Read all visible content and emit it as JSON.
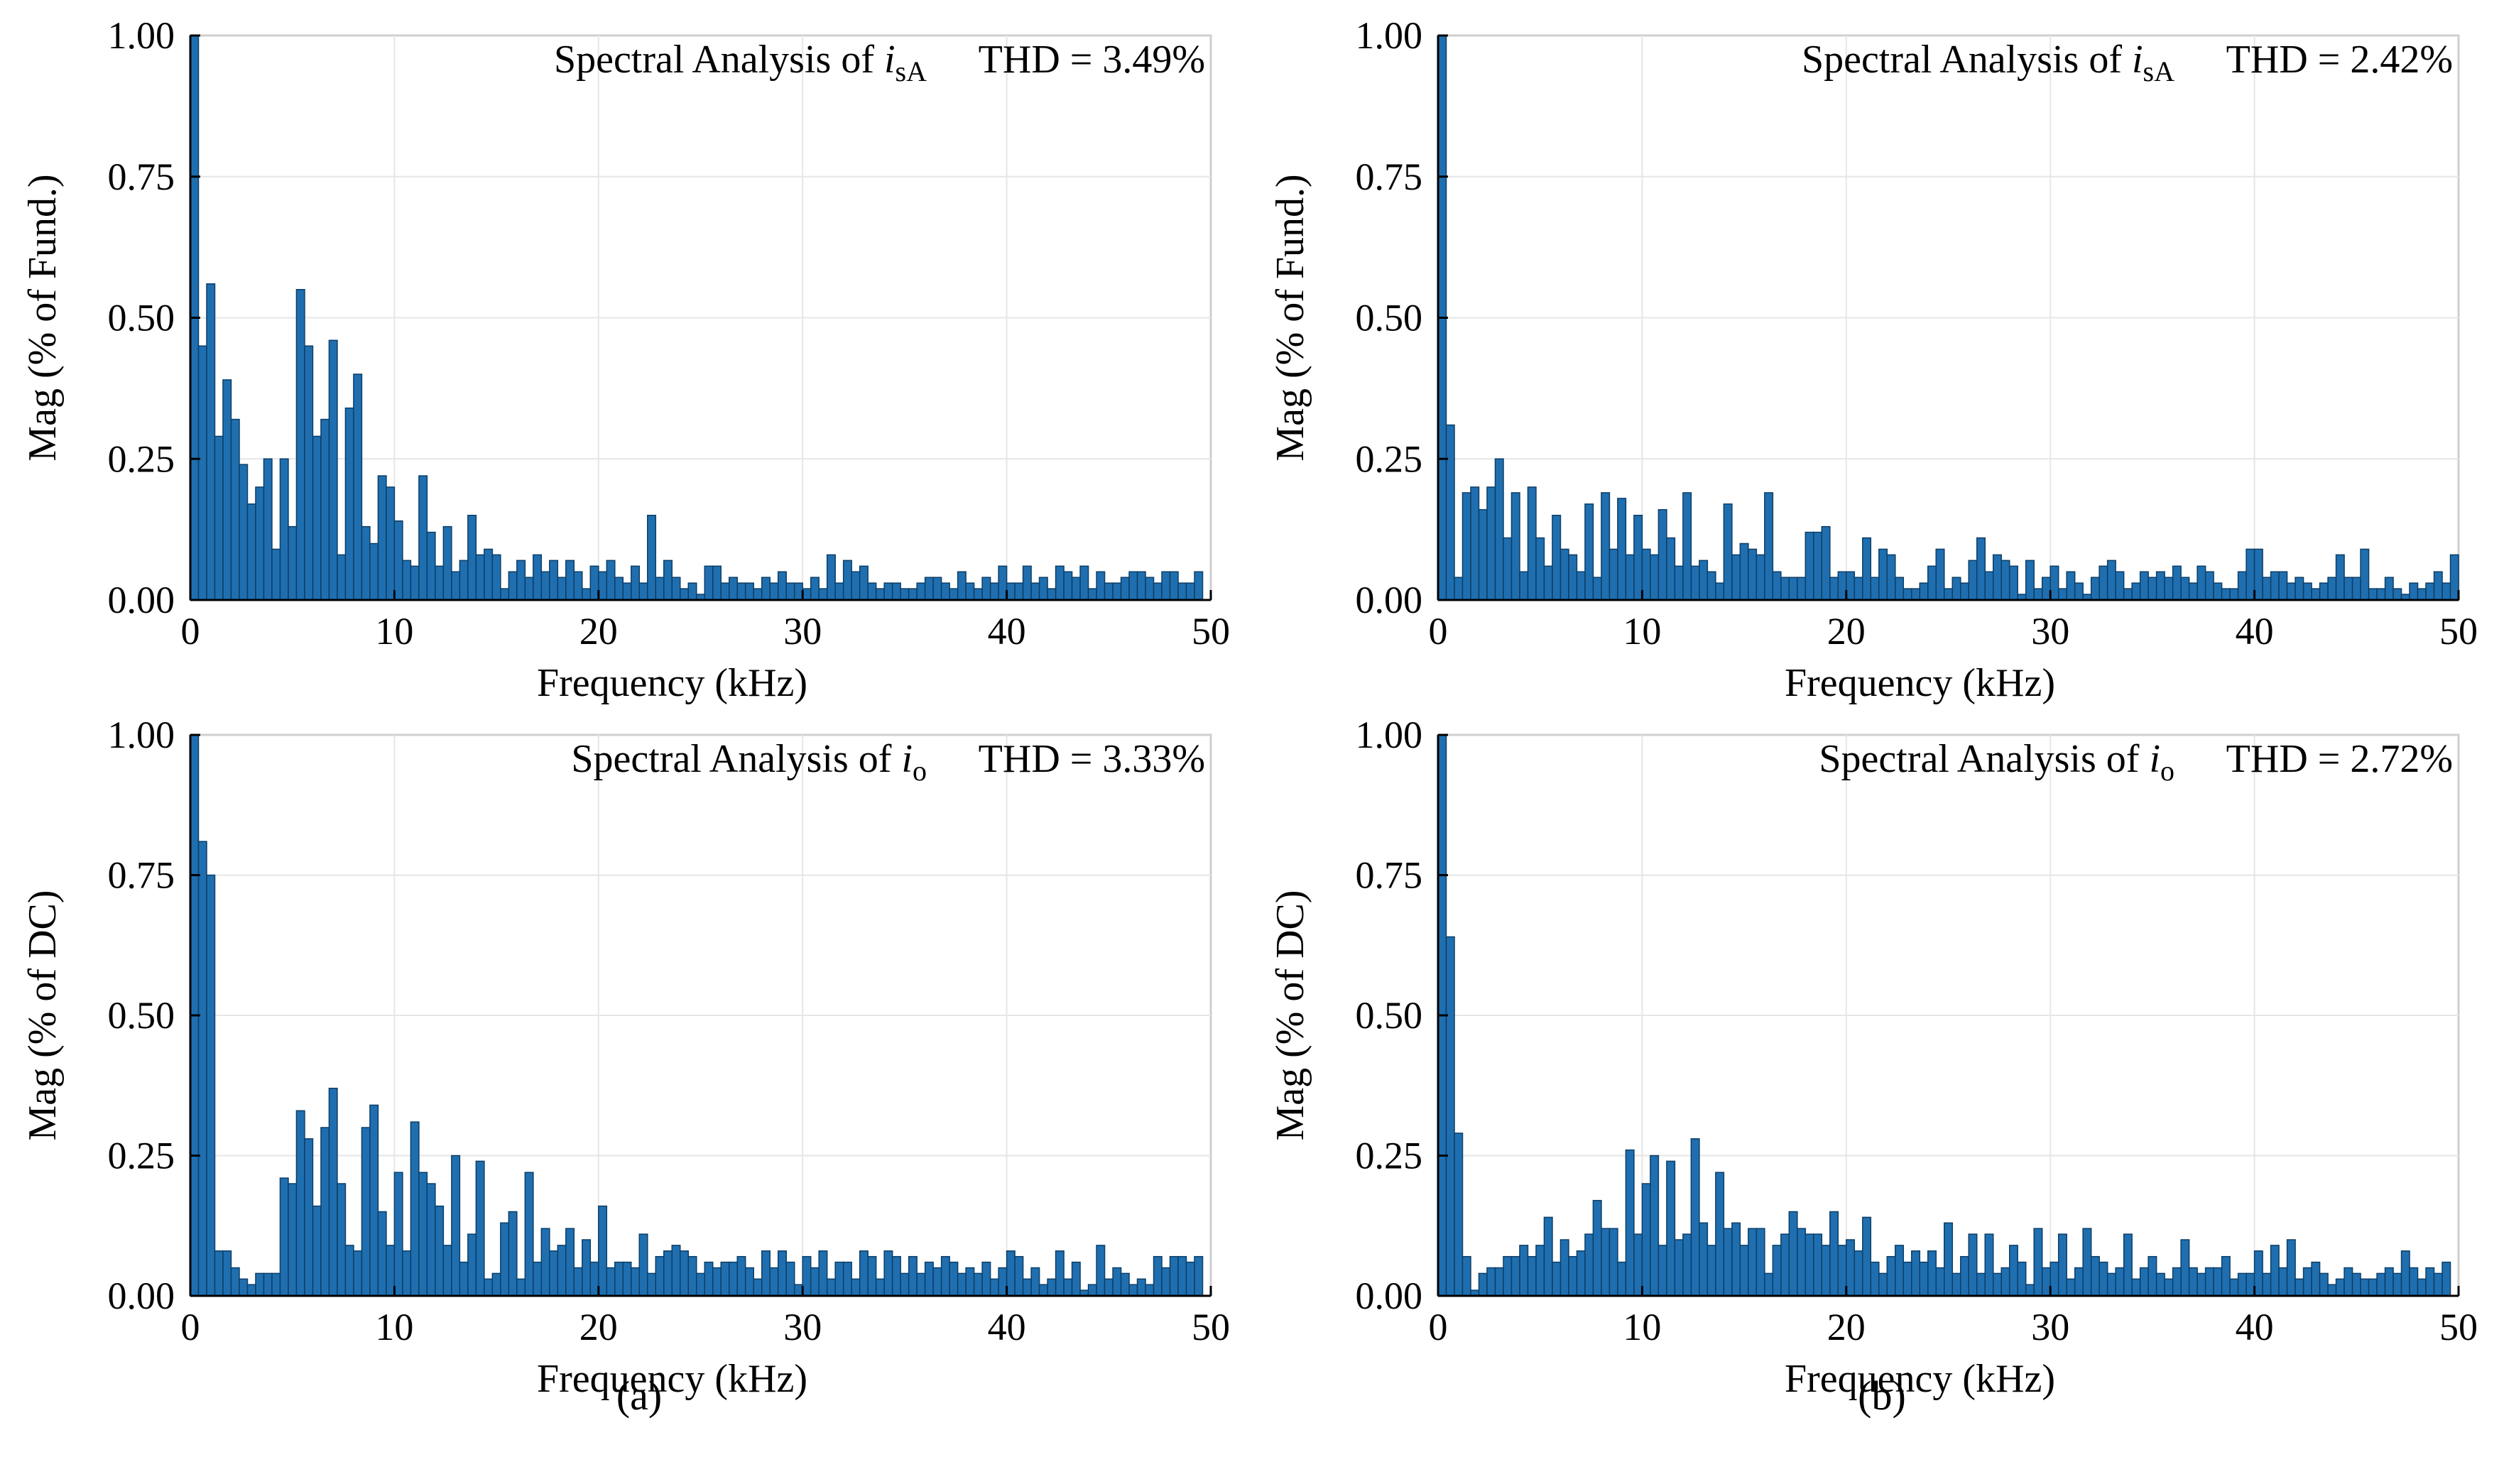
{
  "colors": {
    "bar": "#1f6fb0",
    "bar_edge": "#0d3e66",
    "grid": "#e6e6e6",
    "frame": "#cfcfcf",
    "axis": "#000000"
  },
  "captions": [
    "(a)",
    "(b)"
  ],
  "chart_data": [
    {
      "type": "bar",
      "title_prefix": "Spectral Analysis of ",
      "title_var": "i",
      "title_sub": "sA",
      "thd": "THD = 3.49%",
      "xlabel": "Frequency (kHz)",
      "ylabel": "Mag (% of Fund.)",
      "xlim": [
        0,
        50
      ],
      "ylim": [
        0,
        1
      ],
      "xticks": [
        "0",
        "10",
        "20",
        "30",
        "40",
        "50"
      ],
      "yticks": [
        "0.00",
        "0.25",
        "0.50",
        "0.75",
        "1.00"
      ],
      "bin_width_khz": 0.4,
      "values": [
        1.0,
        0.45,
        0.56,
        0.29,
        0.39,
        0.32,
        0.24,
        0.17,
        0.2,
        0.25,
        0.09,
        0.25,
        0.13,
        0.55,
        0.45,
        0.29,
        0.32,
        0.46,
        0.08,
        0.34,
        0.4,
        0.13,
        0.1,
        0.22,
        0.2,
        0.14,
        0.07,
        0.06,
        0.22,
        0.12,
        0.06,
        0.13,
        0.05,
        0.07,
        0.15,
        0.08,
        0.09,
        0.08,
        0.02,
        0.05,
        0.07,
        0.04,
        0.08,
        0.05,
        0.07,
        0.04,
        0.07,
        0.05,
        0.02,
        0.06,
        0.05,
        0.07,
        0.04,
        0.03,
        0.06,
        0.03,
        0.15,
        0.04,
        0.07,
        0.04,
        0.02,
        0.03,
        0.01,
        0.06,
        0.06,
        0.03,
        0.04,
        0.03,
        0.03,
        0.02,
        0.04,
        0.03,
        0.05,
        0.03,
        0.03,
        0.02,
        0.04,
        0.02,
        0.08,
        0.03,
        0.07,
        0.05,
        0.06,
        0.03,
        0.02,
        0.03,
        0.03,
        0.02,
        0.02,
        0.03,
        0.04,
        0.04,
        0.03,
        0.02,
        0.05,
        0.03,
        0.02,
        0.04,
        0.03,
        0.06,
        0.03,
        0.03,
        0.06,
        0.03,
        0.04,
        0.02,
        0.06,
        0.05,
        0.04,
        0.06,
        0.02,
        0.05,
        0.03,
        0.03,
        0.04,
        0.05,
        0.05,
        0.04,
        0.03,
        0.05,
        0.05,
        0.03,
        0.03,
        0.05
      ]
    },
    {
      "type": "bar",
      "title_prefix": "Spectral Analysis of ",
      "title_var": "i",
      "title_sub": "sA",
      "thd": "THD = 2.42%",
      "xlabel": "Frequency (kHz)",
      "ylabel": "Mag (% of Fund.)",
      "xlim": [
        0,
        50
      ],
      "ylim": [
        0,
        1
      ],
      "xticks": [
        "0",
        "10",
        "20",
        "30",
        "40",
        "50"
      ],
      "yticks": [
        "0.00",
        "0.25",
        "0.50",
        "0.75",
        "1.00"
      ],
      "bin_width_khz": 0.4,
      "values": [
        1.0,
        0.31,
        0.04,
        0.19,
        0.2,
        0.16,
        0.2,
        0.25,
        0.11,
        0.19,
        0.05,
        0.2,
        0.11,
        0.06,
        0.15,
        0.09,
        0.08,
        0.05,
        0.17,
        0.04,
        0.19,
        0.09,
        0.18,
        0.08,
        0.15,
        0.09,
        0.08,
        0.16,
        0.11,
        0.06,
        0.19,
        0.06,
        0.07,
        0.05,
        0.03,
        0.17,
        0.08,
        0.1,
        0.09,
        0.08,
        0.19,
        0.05,
        0.04,
        0.04,
        0.04,
        0.12,
        0.12,
        0.13,
        0.04,
        0.05,
        0.05,
        0.04,
        0.11,
        0.04,
        0.09,
        0.08,
        0.04,
        0.02,
        0.02,
        0.03,
        0.06,
        0.09,
        0.02,
        0.04,
        0.03,
        0.07,
        0.11,
        0.05,
        0.08,
        0.07,
        0.06,
        0.01,
        0.07,
        0.02,
        0.04,
        0.06,
        0.02,
        0.05,
        0.03,
        0.01,
        0.04,
        0.06,
        0.07,
        0.05,
        0.02,
        0.03,
        0.05,
        0.04,
        0.05,
        0.04,
        0.06,
        0.04,
        0.03,
        0.06,
        0.05,
        0.03,
        0.02,
        0.02,
        0.05,
        0.09,
        0.09,
        0.04,
        0.05,
        0.05,
        0.03,
        0.04,
        0.03,
        0.02,
        0.03,
        0.04,
        0.08,
        0.04,
        0.04,
        0.09,
        0.02,
        0.02,
        0.04,
        0.02,
        0.01,
        0.03,
        0.02,
        0.03,
        0.05,
        0.03,
        0.08
      ]
    },
    {
      "type": "bar",
      "title_prefix": "Spectral Analysis of ",
      "title_var": "i",
      "title_sub": "o",
      "thd": "THD = 3.33%",
      "xlabel": "Frequency (kHz)",
      "ylabel": "Mag (% of DC)",
      "xlim": [
        0,
        50
      ],
      "ylim": [
        0,
        1
      ],
      "xticks": [
        "0",
        "10",
        "20",
        "30",
        "40",
        "50"
      ],
      "yticks": [
        "0.00",
        "0.25",
        "0.50",
        "0.75",
        "1.00"
      ],
      "bin_width_khz": 0.4,
      "values": [
        1.0,
        0.81,
        0.75,
        0.08,
        0.08,
        0.05,
        0.03,
        0.02,
        0.04,
        0.04,
        0.04,
        0.21,
        0.2,
        0.33,
        0.28,
        0.16,
        0.3,
        0.37,
        0.2,
        0.09,
        0.08,
        0.3,
        0.34,
        0.15,
        0.09,
        0.22,
        0.08,
        0.31,
        0.22,
        0.2,
        0.16,
        0.09,
        0.25,
        0.06,
        0.11,
        0.24,
        0.03,
        0.04,
        0.13,
        0.15,
        0.03,
        0.22,
        0.06,
        0.12,
        0.08,
        0.09,
        0.12,
        0.05,
        0.1,
        0.06,
        0.16,
        0.05,
        0.06,
        0.06,
        0.05,
        0.11,
        0.04,
        0.07,
        0.08,
        0.09,
        0.08,
        0.07,
        0.04,
        0.06,
        0.05,
        0.06,
        0.06,
        0.07,
        0.05,
        0.03,
        0.08,
        0.05,
        0.08,
        0.06,
        0.02,
        0.07,
        0.05,
        0.08,
        0.03,
        0.06,
        0.06,
        0.03,
        0.08,
        0.07,
        0.03,
        0.08,
        0.07,
        0.04,
        0.07,
        0.04,
        0.06,
        0.05,
        0.07,
        0.06,
        0.04,
        0.05,
        0.04,
        0.06,
        0.03,
        0.05,
        0.08,
        0.07,
        0.03,
        0.05,
        0.02,
        0.03,
        0.08,
        0.03,
        0.06,
        0.01,
        0.02,
        0.09,
        0.03,
        0.05,
        0.04,
        0.02,
        0.03,
        0.02,
        0.07,
        0.05,
        0.07,
        0.07,
        0.06,
        0.07
      ]
    },
    {
      "type": "bar",
      "title_prefix": "Spectral Analysis of ",
      "title_var": "i",
      "title_sub": "o",
      "thd": "THD = 2.72%",
      "xlabel": "Frequency (kHz)",
      "ylabel": "Mag (% of DC)",
      "xlim": [
        0,
        50
      ],
      "ylim": [
        0,
        1
      ],
      "xticks": [
        "0",
        "10",
        "20",
        "30",
        "40",
        "50"
      ],
      "yticks": [
        "0.00",
        "0.25",
        "0.50",
        "0.75",
        "1.00"
      ],
      "bin_width_khz": 0.4,
      "values": [
        1.0,
        0.64,
        0.29,
        0.07,
        0.01,
        0.04,
        0.05,
        0.05,
        0.07,
        0.07,
        0.09,
        0.07,
        0.09,
        0.14,
        0.06,
        0.1,
        0.07,
        0.08,
        0.11,
        0.17,
        0.12,
        0.12,
        0.06,
        0.26,
        0.11,
        0.2,
        0.25,
        0.09,
        0.24,
        0.1,
        0.11,
        0.28,
        0.13,
        0.09,
        0.22,
        0.12,
        0.13,
        0.09,
        0.12,
        0.12,
        0.04,
        0.09,
        0.11,
        0.15,
        0.12,
        0.11,
        0.11,
        0.09,
        0.15,
        0.09,
        0.1,
        0.08,
        0.14,
        0.06,
        0.04,
        0.07,
        0.09,
        0.06,
        0.08,
        0.06,
        0.08,
        0.05,
        0.13,
        0.04,
        0.07,
        0.11,
        0.04,
        0.11,
        0.04,
        0.05,
        0.09,
        0.06,
        0.02,
        0.12,
        0.05,
        0.06,
        0.11,
        0.03,
        0.05,
        0.12,
        0.07,
        0.06,
        0.04,
        0.05,
        0.11,
        0.03,
        0.05,
        0.07,
        0.04,
        0.03,
        0.05,
        0.1,
        0.05,
        0.04,
        0.05,
        0.05,
        0.07,
        0.03,
        0.04,
        0.04,
        0.08,
        0.04,
        0.09,
        0.05,
        0.1,
        0.03,
        0.05,
        0.06,
        0.04,
        0.02,
        0.03,
        0.05,
        0.04,
        0.03,
        0.03,
        0.04,
        0.05,
        0.04,
        0.08,
        0.05,
        0.03,
        0.05,
        0.04,
        0.06
      ]
    }
  ]
}
